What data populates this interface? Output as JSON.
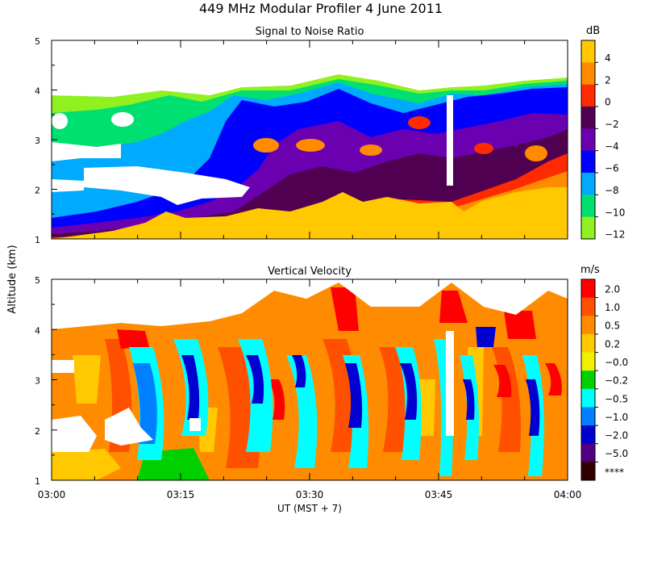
{
  "title": "449   MHz Modular Profiler   4 June 2011",
  "shared": {
    "ylabel": "Altitude (km)",
    "xlabel": "UT  (MST + 7)",
    "x_ticks": [
      "03:00",
      "03:15",
      "03:30",
      "03:45",
      "04:00"
    ],
    "x_range_minutes": [
      0,
      60
    ],
    "y_ticks": [
      "1",
      "2",
      "3",
      "4",
      "5"
    ],
    "y_range_km": [
      1,
      5
    ]
  },
  "panels": {
    "snr": {
      "title": "Signal to Noise Ratio",
      "unit": "dB",
      "levels": [
        {
          "label": "4",
          "color": "#ffc800"
        },
        {
          "label": "2",
          "color": "#ff8c00"
        },
        {
          "label": "0",
          "color": "#ff2a00"
        },
        {
          "label": "−2",
          "color": "#500050"
        },
        {
          "label": "−4",
          "color": "#6a00b0"
        },
        {
          "label": "−6",
          "color": "#0000ff"
        },
        {
          "label": "−8",
          "color": "#00aaff"
        },
        {
          "label": "−10",
          "color": "#00e070"
        },
        {
          "label": "−12",
          "color": "#90f020"
        }
      ]
    },
    "vv": {
      "title": "Vertical Velocity",
      "unit": "m/s",
      "levels": [
        {
          "label": "2.0",
          "color": "#ff0000"
        },
        {
          "label": "1.0",
          "color": "#ff5000"
        },
        {
          "label": "0.5",
          "color": "#ff8c00"
        },
        {
          "label": "0.2",
          "color": "#ffc800"
        },
        {
          "label": "−0.0",
          "color": "#f0f000"
        },
        {
          "label": "−0.2",
          "color": "#00d000"
        },
        {
          "label": "−0.5",
          "color": "#00ffff"
        },
        {
          "label": "−1.0",
          "color": "#0080ff"
        },
        {
          "label": "−2.0",
          "color": "#0000d0"
        },
        {
          "label": "−5.0",
          "color": "#500080"
        },
        {
          "label": "****",
          "color": "#300000"
        }
      ]
    }
  },
  "chart_data": [
    {
      "type": "heatmap",
      "title": "Signal to Noise Ratio",
      "xlabel": "UT  (MST + 7)",
      "ylabel": "Altitude (km)",
      "x_range": [
        "03:00",
        "04:00"
      ],
      "ylim": [
        1,
        5
      ],
      "unit": "dB",
      "color_levels": [
        4,
        2,
        0,
        -2,
        -4,
        -6,
        -8,
        -10,
        -12
      ],
      "features": [
        {
          "description": "High SNR (>4 dB) boundary layer from surface up to",
          "x_minutes": [
            0,
            15,
            30,
            45,
            60
          ],
          "top_altitude_km": [
            1.1,
            1.4,
            1.7,
            1.8,
            2.0
          ]
        },
        {
          "description": "Low SNR (-12 to -10 dB) data top",
          "x_minutes": [
            0,
            15,
            30,
            45,
            60
          ],
          "top_altitude_km": [
            3.9,
            3.9,
            4.2,
            4.0,
            4.3
          ]
        }
      ]
    },
    {
      "type": "heatmap",
      "title": "Vertical Velocity",
      "xlabel": "UT  (MST + 7)",
      "ylabel": "Altitude (km)",
      "x_range": [
        "03:00",
        "04:00"
      ],
      "ylim": [
        1,
        5
      ],
      "unit": "m/s",
      "color_levels": [
        2.0,
        1.0,
        0.5,
        0.2,
        -0.0,
        -0.2,
        -0.5,
        -1.0,
        -2.0,
        -5.0
      ],
      "features": [
        {
          "description": "Downdraft columns (about -1 to -2 m/s)",
          "x_minutes": [
            7,
            13,
            20,
            30,
            39,
            47,
            56
          ]
        },
        {
          "description": "Updraft columns (about 1 to 2 m/s)",
          "x_minutes": [
            10,
            26,
            34,
            43,
            52,
            58
          ]
        }
      ]
    }
  ]
}
